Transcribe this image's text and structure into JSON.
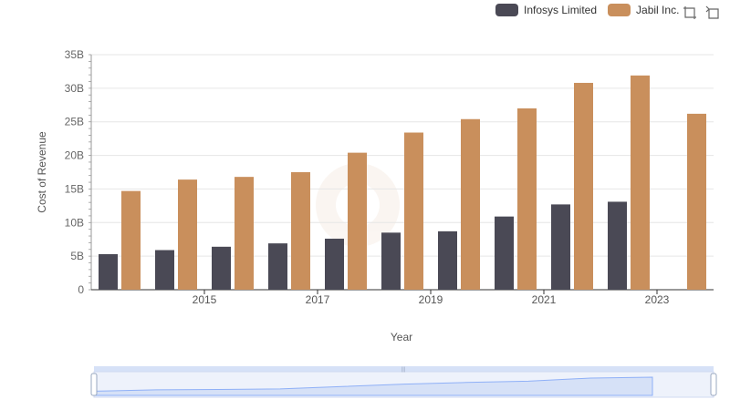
{
  "legend": {
    "series_1": "Infosys Limited",
    "series_2": "Jabil Inc."
  },
  "colors": {
    "infosys": "#4a4955",
    "jabil": "#c98f5c",
    "grid": "#e6e6e6",
    "axis": "#6e6e6e",
    "zoom_fill": "#d6e1f7",
    "zoom_line": "#8fb0f7"
  },
  "toolbar": {
    "zoom_icon": "zoom-select-icon",
    "reset_icon": "zoom-reset-icon"
  },
  "chart_data": {
    "type": "bar",
    "title": "",
    "xlabel": "Year",
    "ylabel": "Cost of Revenue",
    "ylim": [
      0,
      35
    ],
    "y_unit": "B",
    "y_ticks": [
      "0",
      "5B",
      "10B",
      "15B",
      "20B",
      "25B",
      "30B",
      "35B"
    ],
    "x_tick_labels": [
      "2015",
      "2017",
      "2019",
      "2021",
      "2023"
    ],
    "categories": [
      "2014",
      "2015",
      "2016",
      "2017",
      "2018",
      "2019",
      "2020",
      "2021",
      "2022",
      "2023",
      "2024"
    ],
    "series": [
      {
        "name": "Infosys Limited",
        "values": [
          5.3,
          5.9,
          6.4,
          6.9,
          7.6,
          8.5,
          8.7,
          10.9,
          12.7,
          13.1,
          null
        ]
      },
      {
        "name": "Jabil Inc.",
        "values": [
          14.7,
          16.4,
          16.8,
          17.5,
          20.4,
          23.4,
          25.4,
          27.0,
          30.8,
          31.9,
          26.2
        ]
      }
    ],
    "legend_position": "top-right",
    "grid": true
  }
}
